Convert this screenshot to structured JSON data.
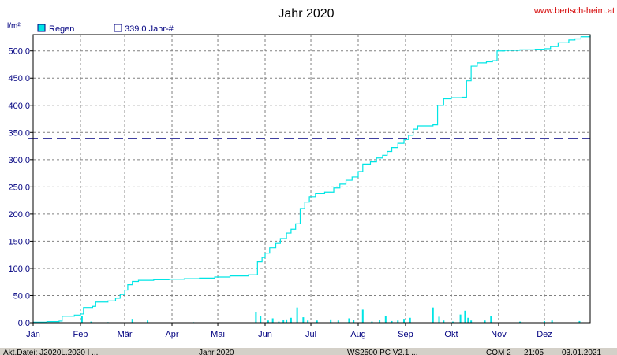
{
  "header": {
    "url": "www.bertsch-heim.at"
  },
  "status_bar": {
    "left_text": "Akt.Datei: J2020L.2020 | ...",
    "year_text": "Jahr 2020",
    "version_text": "WS2500 PC V2.1 ...",
    "com_text": "COM 2",
    "time_text": "21:05",
    "date_text": "03.01.2021"
  },
  "colors": {
    "rain": "#00e5e5",
    "average": "#000080",
    "grid": "#808080",
    "text": "#000080"
  },
  "chart_data": {
    "type": "line",
    "title": "Jahr 2020",
    "ylabel": "l/m²",
    "ylim": [
      0,
      530
    ],
    "yticks": [
      0,
      50,
      100,
      150,
      200,
      250,
      300,
      350,
      400,
      450,
      500
    ],
    "ytick_labels": [
      "0.0",
      "50.0",
      "100.0",
      "150.0",
      "200.0",
      "250.0",
      "300.0",
      "350.0",
      "400.0",
      "450.0",
      "500.0"
    ],
    "xlim": [
      1,
      366
    ],
    "months": [
      {
        "label": "Jän",
        "day": 1
      },
      {
        "label": "Feb",
        "day": 32
      },
      {
        "label": "Mär",
        "day": 61
      },
      {
        "label": "Apr",
        "day": 92
      },
      {
        "label": "Mai",
        "day": 122
      },
      {
        "label": "Jun",
        "day": 153
      },
      {
        "label": "Jul",
        "day": 183
      },
      {
        "label": "Aug",
        "day": 214
      },
      {
        "label": "Sep",
        "day": 245
      },
      {
        "label": "Okt",
        "day": 275
      },
      {
        "label": "Nov",
        "day": 306
      },
      {
        "label": "Dez",
        "day": 336
      }
    ],
    "grid": true,
    "legend": [
      {
        "name": "Regen",
        "style": "filled"
      },
      {
        "name": "339.0 Jahr-#",
        "style": "outline"
      }
    ],
    "average": 339.0,
    "series": [
      {
        "name": "Regen",
        "kind": "cumulative",
        "points": [
          [
            1,
            1
          ],
          [
            10,
            2
          ],
          [
            18,
            3
          ],
          [
            20,
            12
          ],
          [
            28,
            14
          ],
          [
            32,
            16
          ],
          [
            34,
            28
          ],
          [
            40,
            30
          ],
          [
            42,
            38
          ],
          [
            50,
            40
          ],
          [
            55,
            45
          ],
          [
            58,
            52
          ],
          [
            61,
            60
          ],
          [
            63,
            70
          ],
          [
            66,
            76
          ],
          [
            70,
            78
          ],
          [
            80,
            79
          ],
          [
            90,
            80
          ],
          [
            100,
            81
          ],
          [
            110,
            82
          ],
          [
            120,
            84
          ],
          [
            130,
            86
          ],
          [
            142,
            88
          ],
          [
            146,
            88
          ],
          [
            148,
            112
          ],
          [
            151,
            120
          ],
          [
            153,
            128
          ],
          [
            156,
            138
          ],
          [
            160,
            146
          ],
          [
            163,
            155
          ],
          [
            167,
            165
          ],
          [
            170,
            172
          ],
          [
            173,
            182
          ],
          [
            176,
            210
          ],
          [
            179,
            222
          ],
          [
            182,
            232
          ],
          [
            186,
            238
          ],
          [
            192,
            240
          ],
          [
            198,
            248
          ],
          [
            202,
            255
          ],
          [
            206,
            262
          ],
          [
            210,
            268
          ],
          [
            214,
            278
          ],
          [
            217,
            292
          ],
          [
            222,
            296
          ],
          [
            226,
            303
          ],
          [
            230,
            308
          ],
          [
            233,
            315
          ],
          [
            236,
            322
          ],
          [
            240,
            330
          ],
          [
            244,
            337
          ],
          [
            247,
            345
          ],
          [
            250,
            356
          ],
          [
            253,
            362
          ],
          [
            263,
            364
          ],
          [
            266,
            400
          ],
          [
            270,
            412
          ],
          [
            275,
            414
          ],
          [
            282,
            415
          ],
          [
            285,
            445
          ],
          [
            288,
            472
          ],
          [
            292,
            478
          ],
          [
            298,
            480
          ],
          [
            302,
            482
          ],
          [
            305,
            500
          ],
          [
            310,
            501
          ],
          [
            320,
            502
          ],
          [
            330,
            503
          ],
          [
            336,
            504
          ],
          [
            340,
            508
          ],
          [
            345,
            515
          ],
          [
            352,
            520
          ],
          [
            356,
            522
          ],
          [
            360,
            526
          ],
          [
            366,
            528
          ]
        ]
      },
      {
        "name": "Regen (Tag)",
        "kind": "daily",
        "points": [
          [
            33,
            12
          ],
          [
            39,
            2
          ],
          [
            50,
            1
          ],
          [
            66,
            7
          ],
          [
            76,
            4
          ],
          [
            106,
            1
          ],
          [
            147,
            20
          ],
          [
            150,
            12
          ],
          [
            155,
            4
          ],
          [
            158,
            8
          ],
          [
            162,
            2
          ],
          [
            165,
            5
          ],
          [
            167,
            6
          ],
          [
            170,
            9
          ],
          [
            174,
            28
          ],
          [
            178,
            10
          ],
          [
            181,
            4
          ],
          [
            187,
            4
          ],
          [
            196,
            6
          ],
          [
            201,
            4
          ],
          [
            208,
            8
          ],
          [
            211,
            5
          ],
          [
            217,
            24
          ],
          [
            223,
            2
          ],
          [
            228,
            5
          ],
          [
            232,
            12
          ],
          [
            236,
            3
          ],
          [
            240,
            4
          ],
          [
            244,
            7
          ],
          [
            248,
            9
          ],
          [
            263,
            28
          ],
          [
            267,
            11
          ],
          [
            270,
            4
          ],
          [
            276,
            2
          ],
          [
            281,
            15
          ],
          [
            284,
            22
          ],
          [
            286,
            9
          ],
          [
            288,
            4
          ],
          [
            297,
            4
          ],
          [
            301,
            12
          ],
          [
            320,
            2
          ],
          [
            336,
            3
          ],
          [
            341,
            4
          ],
          [
            359,
            3
          ]
        ]
      }
    ]
  }
}
